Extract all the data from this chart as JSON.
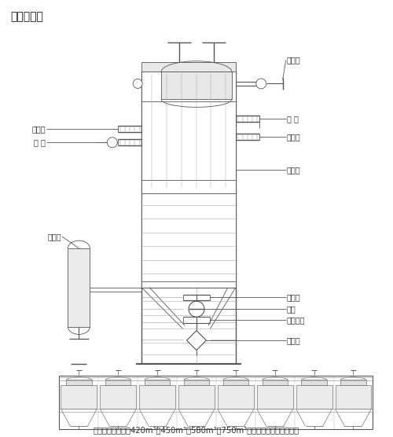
{
  "title": "结构示意图",
  "line_color": "#555555",
  "label_color": "#333333",
  "caption": "目前已成功制造出420m³、450m³、580m³、750m³等规格的高炉煤气除尘器",
  "labels_right": [
    "放散管",
    "蝶 阀",
    "育板阀",
    "除尘器",
    "卸灰阀",
    "球阀",
    "中间灰斗",
    "排灰阀"
  ],
  "labels_left": [
    "育板阀",
    "蝶 阀",
    "炉气罐"
  ],
  "figsize": [
    5.0,
    5.56
  ],
  "dpi": 100,
  "xlim": [
    0,
    10
  ],
  "ylim": [
    0,
    11.12
  ]
}
